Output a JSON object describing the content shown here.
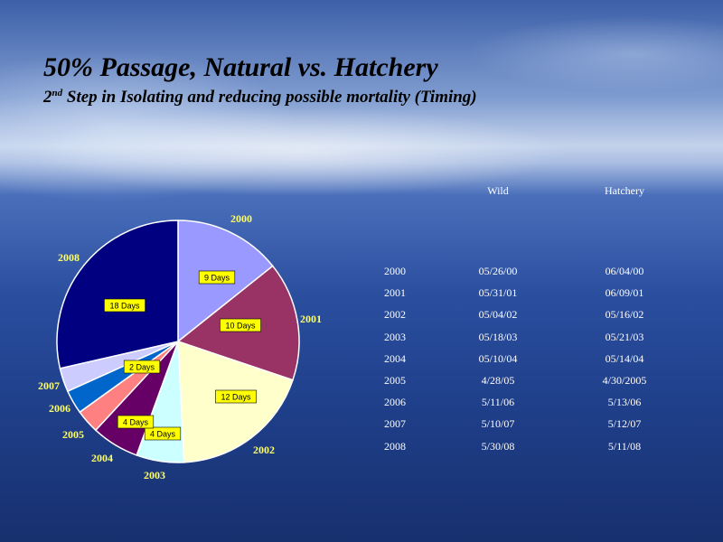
{
  "header": {
    "title": "50% Passage, Natural vs. Hatchery",
    "subtitle_prefix": "2",
    "subtitle_sup": "nd",
    "subtitle_rest": " Step in Isolating and reducing possible mortality (Timing)"
  },
  "chart_data": [
    {
      "type": "pie",
      "slices": [
        {
          "year": "2000",
          "value": 9,
          "color": "#9999ff"
        },
        {
          "year": "2001",
          "value": 10,
          "color": "#993366"
        },
        {
          "year": "2002",
          "value": 12,
          "color": "#ffffcc"
        },
        {
          "year": "2003",
          "value": 4,
          "color": "#ccffff"
        },
        {
          "year": "2004",
          "value": 4,
          "color": "#660066"
        },
        {
          "year": "2005",
          "value": 2,
          "color": "#ff8080"
        },
        {
          "year": "2006",
          "value": 2,
          "color": "#0066cc"
        },
        {
          "year": "2007",
          "value": 2,
          "color": "#ccccff"
        },
        {
          "year": "2008",
          "value": 18,
          "color": "#000080"
        }
      ],
      "data_labels": [
        {
          "year": "2000",
          "text": "9 Days"
        },
        {
          "year": "2001",
          "text": "10 Days"
        },
        {
          "year": "2002",
          "text": "12 Days"
        },
        {
          "year": "2003",
          "text": "4 Days"
        },
        {
          "year": "2004",
          "text": "4 Days"
        },
        {
          "year": "2007",
          "text": "2 Days"
        },
        {
          "year": "2008",
          "text": "18 Days"
        }
      ],
      "label_colors": {
        "year_text": "#ffff66",
        "data_label_bg": "#ffff00"
      }
    },
    {
      "type": "table",
      "columns": [
        "",
        "Wild",
        "Hatchery"
      ],
      "rows": [
        [
          "2000",
          "05/26/00",
          "06/04/00"
        ],
        [
          "2001",
          "05/31/01",
          "06/09/01"
        ],
        [
          "2002",
          "05/04/02",
          "05/16/02"
        ],
        [
          "2003",
          "05/18/03",
          "05/21/03"
        ],
        [
          "2004",
          "05/10/04",
          "05/14/04"
        ],
        [
          "2005",
          "4/28/05",
          "4/30/2005"
        ],
        [
          "2006",
          "5/11/06",
          "5/13/06"
        ],
        [
          "2007",
          "5/10/07",
          "5/12/07"
        ],
        [
          "2008",
          "5/30/08",
          "5/11/08"
        ]
      ]
    }
  ]
}
